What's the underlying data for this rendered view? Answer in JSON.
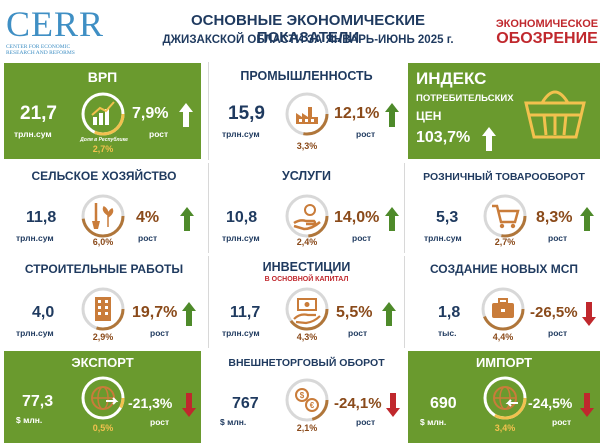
{
  "header": {
    "logo": "CERR",
    "logo_sub_1": "CENTER FOR ECONOMIC",
    "logo_sub_2": "RESEARCH AND REFORMS",
    "title_1": "ОСНОВНЫЕ ЭКОНОМИЧЕСКИЕ ПОКАЗАТЕЛИ",
    "title_2": "ДЖИЗАКСКОЙ ОБЛАСТИ ЗА ЯНВАРЬ-ИЮНЬ  2025 г.",
    "brand_1": "ЭКОНОМИЧЕСКОЕ",
    "brand_2": "ОБОЗРЕНИЕ"
  },
  "colors": {
    "green": "#6a9a2e",
    "navy": "#1f3a5f",
    "brown": "#8a4a1a",
    "up": "#4e8a2a",
    "down": "#c0282d",
    "gold": "#f2c14e"
  },
  "cards": {
    "vrp": {
      "title": "ВРП",
      "value": "21,7",
      "unit": "трлн.сум",
      "icon": "growth-chart-icon",
      "icon_caption": "Доля в Республике",
      "share": "2,7%",
      "growth": "7,9%",
      "growth_label": "рост",
      "direction": "up"
    },
    "industry": {
      "title": "ПРОМЫШЛЕННОСТЬ",
      "value": "15,9",
      "unit": "трлн.сум",
      "icon": "factory-icon",
      "share": "3,3%",
      "growth": "12,1%",
      "growth_label": "рост",
      "direction": "up"
    },
    "cpi": {
      "title_1": "ИНДЕКС",
      "title_2": "ПОТРЕБИТЕЛЬСКИХ",
      "title_3": "ЦЕН",
      "value": "103,7%",
      "icon": "basket-icon",
      "direction": "up"
    },
    "agriculture": {
      "title": "СЕЛЬСКОЕ ХОЗЯЙСТВО",
      "value": "11,8",
      "unit": "трлн.сум",
      "icon": "shovel-plant-icon",
      "share": "6,0%",
      "growth": "4%",
      "growth_label": "рост",
      "direction": "up"
    },
    "services": {
      "title": "УСЛУГИ",
      "value": "10,8",
      "unit": "трлн.сум",
      "icon": "hand-service-icon",
      "share": "2,4%",
      "growth": "14,0%",
      "growth_label": "рост",
      "direction": "up"
    },
    "retail": {
      "title": "РОЗНИЧНЫЙ ТОВАРООБОРОТ",
      "value": "5,3",
      "unit": "трлн.сум",
      "icon": "shopping-cart-icon",
      "share": "2,7%",
      "growth": "8,3%",
      "growth_label": "рост",
      "direction": "up"
    },
    "construction": {
      "title": "СТРОИТЕЛЬНЫЕ РАБОТЫ",
      "value": "4,0",
      "unit": "трлн.сум",
      "icon": "building-icon",
      "share": "2,9%",
      "growth": "19,7%",
      "growth_label": "рост",
      "direction": "up"
    },
    "investment": {
      "title": "ИНВЕСТИЦИИ",
      "subtitle": "В ОСНОВНОЙ КАПИТАЛ",
      "value": "11,7",
      "unit": "трлн.сум",
      "icon": "money-hand-icon",
      "share": "4,3%",
      "growth": "5,5%",
      "growth_label": "рост",
      "direction": "up"
    },
    "sme": {
      "title": "СОЗДАНИЕ НОВЫХ МСП",
      "value": "1,8",
      "unit": "тыс.",
      "icon": "briefcase-icon",
      "share": "4,4%",
      "growth": "-26,5%",
      "growth_label": "рост",
      "direction": "down"
    },
    "export": {
      "title": "ЭКСПОРТ",
      "value": "77,3",
      "unit": "$ млн.",
      "icon": "globe-export-icon",
      "share": "0,5%",
      "growth": "-21,3%",
      "growth_label": "рост",
      "direction": "down"
    },
    "trade": {
      "title": "ВНЕШНЕТОРГОВЫЙ ОБОРОТ",
      "value": "767",
      "unit": "$ млн.",
      "icon": "currency-exchange-icon",
      "share": "2,1%",
      "growth": "-24,1%",
      "growth_label": "рост",
      "direction": "down"
    },
    "import": {
      "title": "ИМПОРТ",
      "value": "690",
      "unit": "$ млн.",
      "icon": "globe-import-icon",
      "share": "3,4%",
      "growth": "-24,5%",
      "growth_label": "рост",
      "direction": "down"
    }
  }
}
